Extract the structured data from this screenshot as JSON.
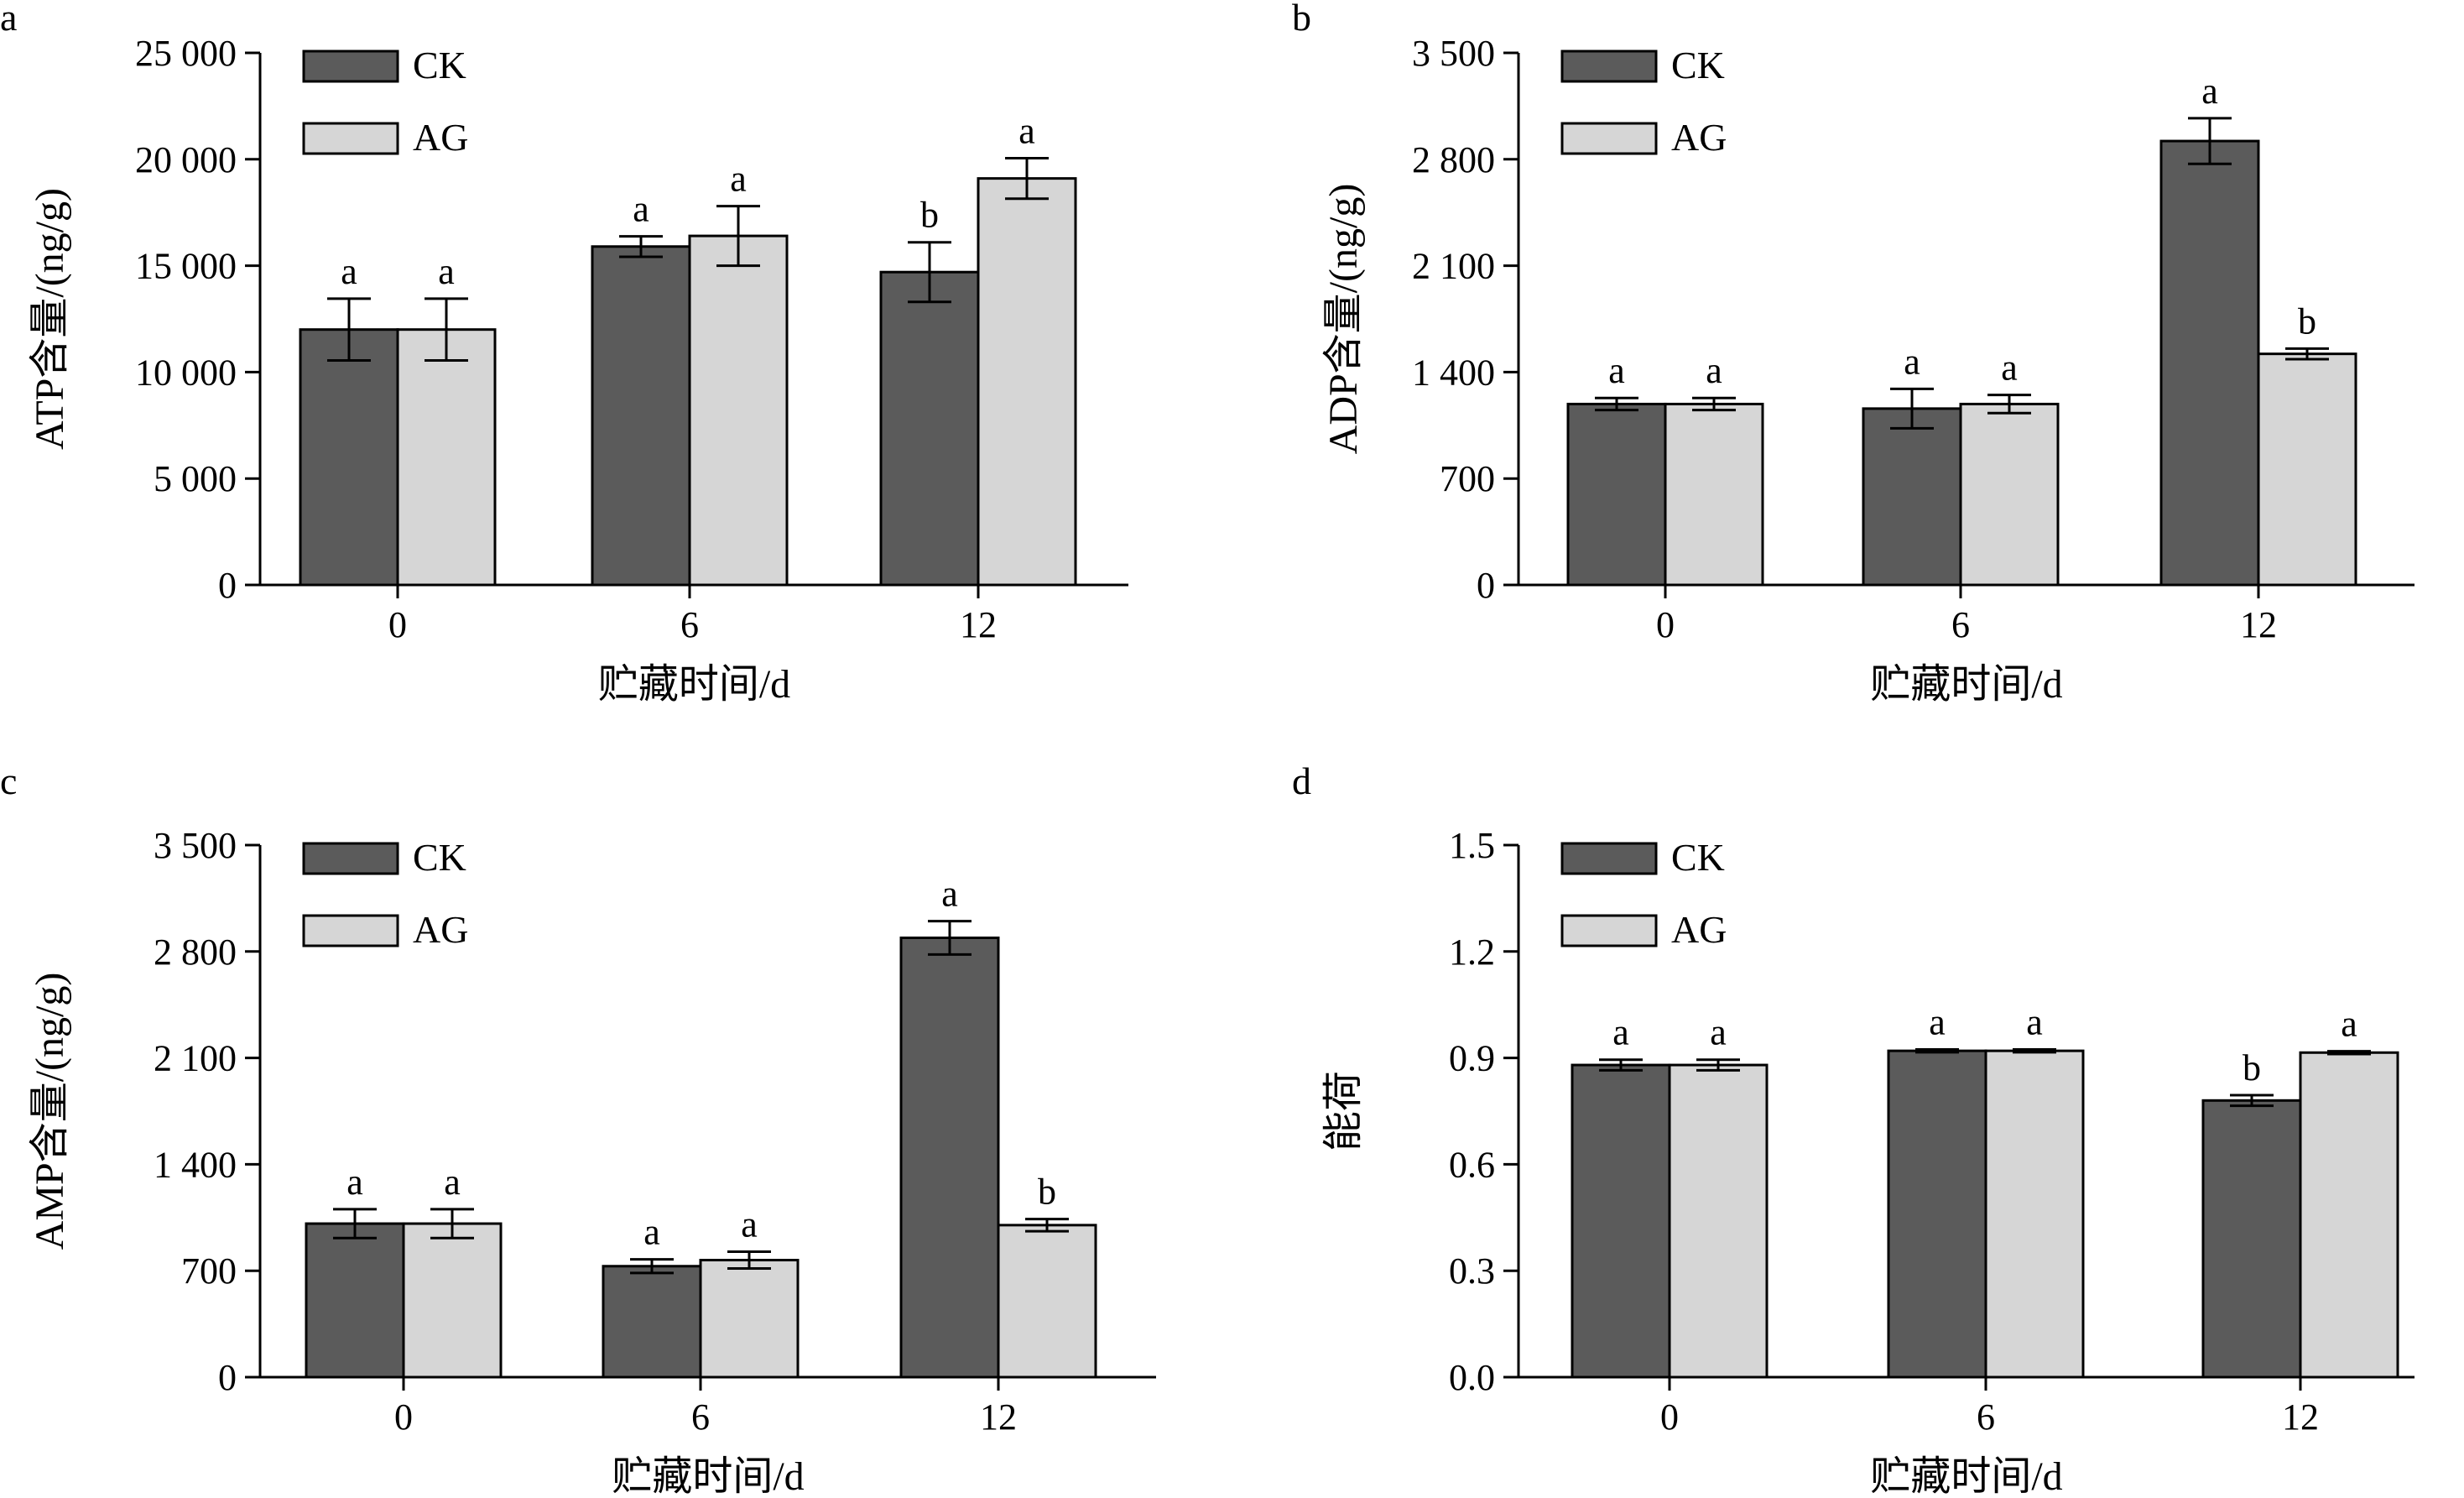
{
  "colors": {
    "CK": "#5b5b5b",
    "AG": "#d6d6d6",
    "axis": "#000000"
  },
  "chart_data": [
    {
      "type": "bar",
      "panel": "a",
      "categories": [
        "0",
        "6",
        "12"
      ],
      "xlabel": "贮藏时间/d",
      "ylabel": "ATP含量/(ng/g)",
      "ylim": [
        0,
        25000
      ],
      "yticks": [
        0,
        5000,
        10000,
        15000,
        20000,
        25000
      ],
      "ytick_labels": [
        "0",
        "5 000",
        "10 000",
        "15 000",
        "20 000",
        "25 000"
      ],
      "legend": "top-left",
      "grid": false,
      "series": [
        {
          "name": "CK",
          "values": [
            12000,
            15900,
            14700
          ],
          "errors": [
            1450,
            480,
            1400
          ],
          "sig": [
            "a",
            "a",
            "b"
          ]
        },
        {
          "name": "AG",
          "values": [
            12000,
            16400,
            19100
          ],
          "errors": [
            1450,
            1400,
            950
          ],
          "sig": [
            "a",
            "a",
            "a"
          ]
        }
      ]
    },
    {
      "type": "bar",
      "panel": "b",
      "categories": [
        "0",
        "6",
        "12"
      ],
      "xlabel": "贮藏时间/d",
      "ylabel": "ADP含量/(ng/g)",
      "ylim": [
        0,
        3500
      ],
      "yticks": [
        0,
        700,
        1400,
        2100,
        2800,
        3500
      ],
      "ytick_labels": [
        "0",
        "700",
        "1 400",
        "2 100",
        "2 800",
        "3 500"
      ],
      "legend": "top-left",
      "grid": false,
      "series": [
        {
          "name": "CK",
          "values": [
            1190,
            1160,
            2920
          ],
          "errors": [
            40,
            130,
            150
          ],
          "sig": [
            "a",
            "a",
            "a"
          ]
        },
        {
          "name": "AG",
          "values": [
            1190,
            1190,
            1520
          ],
          "errors": [
            40,
            60,
            35
          ],
          "sig": [
            "a",
            "a",
            "b"
          ]
        }
      ]
    },
    {
      "type": "bar",
      "panel": "c",
      "categories": [
        "0",
        "6",
        "12"
      ],
      "xlabel": "贮藏时间/d",
      "ylabel": "AMP含量/(ng/g)",
      "ylim": [
        0,
        3500
      ],
      "yticks": [
        0,
        700,
        1400,
        2100,
        2800,
        3500
      ],
      "ytick_labels": [
        "0",
        "700",
        "1 400",
        "2 100",
        "2 800",
        "3 500"
      ],
      "legend": "top-left",
      "grid": false,
      "series": [
        {
          "name": "CK",
          "values": [
            1010,
            730,
            2890
          ],
          "errors": [
            95,
            45,
            110
          ],
          "sig": [
            "a",
            "a",
            "a"
          ]
        },
        {
          "name": "AG",
          "values": [
            1010,
            770,
            1000
          ],
          "errors": [
            95,
            55,
            40
          ],
          "sig": [
            "a",
            "a",
            "b"
          ]
        }
      ]
    },
    {
      "type": "bar",
      "panel": "d",
      "categories": [
        "0",
        "6",
        "12"
      ],
      "xlabel": "贮藏时间/d",
      "ylabel": "能荷",
      "ylim": [
        0,
        1.5
      ],
      "yticks": [
        0,
        0.3,
        0.6,
        0.9,
        1.2,
        1.5
      ],
      "ytick_labels": [
        "0.0",
        "0.3",
        "0.6",
        "0.9",
        "1.2",
        "1.5"
      ],
      "legend": "top-left",
      "grid": false,
      "series": [
        {
          "name": "CK",
          "values": [
            0.88,
            0.92,
            0.78
          ],
          "errors": [
            0.015,
            0.004,
            0.015
          ],
          "sig": [
            "a",
            "a",
            "b"
          ]
        },
        {
          "name": "AG",
          "values": [
            0.88,
            0.92,
            0.915
          ],
          "errors": [
            0.015,
            0.004,
            0.004
          ],
          "sig": [
            "a",
            "a",
            "a"
          ]
        }
      ]
    }
  ]
}
